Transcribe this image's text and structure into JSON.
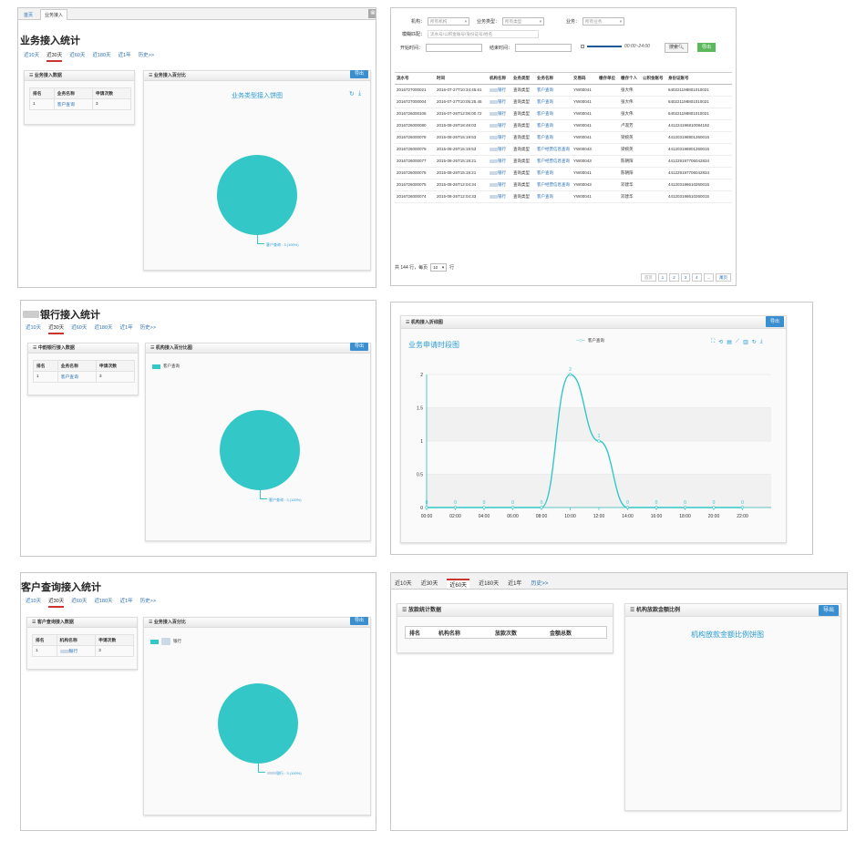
{
  "p1": {
    "nav_tabs": [
      "首页",
      "业务接入"
    ],
    "title": "业务接入统计",
    "range_tabs": [
      "近10天",
      "近30天",
      "近60天",
      "近180天",
      "近1年",
      "历史>>"
    ],
    "active_range": 1,
    "left_card": {
      "title": "业务接入数据",
      "headers": [
        "排名",
        "业务名称",
        "申请次数"
      ],
      "rows": [
        [
          "1",
          "客户查询",
          "3"
        ]
      ]
    },
    "right_card": {
      "title": "业务接入百分比",
      "export": "导出"
    },
    "chart_data": {
      "type": "pie",
      "title": "业务类型接入饼图",
      "series": [
        {
          "name": "客户查询",
          "values": [
            3
          ]
        }
      ],
      "labels": [
        "客户查询 : 3 (100%)"
      ],
      "color": "#33c7c7"
    }
  },
  "p2": {
    "filters": {
      "org_label": "机构：",
      "org_value": "所有机构",
      "type_label": "业务类型：",
      "type_value": "所有类型",
      "biz_label": "业务：",
      "biz_value": "所有业务",
      "fuzzy_label": "模糊匹配：",
      "fuzzy_placeholder": "流水号/公积金账号/身份证号/姓名",
      "start_label": "开始时间：",
      "end_label": "结束时间：",
      "time_range": "00:00~24:00",
      "search": "搜索",
      "export": "导出"
    },
    "headers": [
      "流水号",
      "时间",
      "机构名称",
      "业务类型",
      "业务名称",
      "交易码",
      "缴存单位",
      "缴存个人",
      "公积金账号",
      "身份证账号"
    ],
    "rows": [
      [
        "2016727000021",
        "2016-07-27T10:34:45.61",
        "银行",
        "查询类型",
        "客户查询",
        "YW00041",
        "",
        "张大伟",
        "",
        "640221198801010021"
      ],
      [
        "2016727000004",
        "2016-07-27T10:05:25.45",
        "银行",
        "查询类型",
        "客户查询",
        "YW00041",
        "",
        "张大伟",
        "",
        "640221198801010021"
      ],
      [
        "2016726000105",
        "2016-07-26T12:06:00.72",
        "银行",
        "查询类型",
        "客户查询",
        "YW00041",
        "",
        "张大伟",
        "",
        "640221198801010021"
      ],
      [
        "2016726000080",
        "2015-08-26T18:49:03",
        "银行",
        "查询类型",
        "客户查询",
        "YW00041",
        "",
        "卢淑芳",
        "",
        "441224196810084192"
      ],
      [
        "2016726000078",
        "2015-08-26T15:19:53",
        "银行",
        "查询类型",
        "客户查询",
        "YW00041",
        "",
        "梁婉英",
        "",
        "441203198801260015"
      ],
      [
        "2016726000079",
        "2015-08-26T15:19:53",
        "银行",
        "查询类型",
        "客户经营信息查询",
        "YW00043",
        "",
        "梁婉英",
        "",
        "441203198801260015"
      ],
      [
        "2016726000077",
        "2015-08-26T15:19:21",
        "银行",
        "查询类型",
        "客户经营信息查询",
        "YW00043",
        "",
        "陈朝阳",
        "",
        "441229197706042834"
      ],
      [
        "2016726000076",
        "2015-08-26T15:19:21",
        "银行",
        "查询类型",
        "客户查询",
        "YW00041",
        "",
        "陈朝阳",
        "",
        "441229197706042834"
      ],
      [
        "2016726000075",
        "2015-08-26T12:04:34",
        "银行",
        "查询类型",
        "客户经营信息查询",
        "YW00043",
        "",
        "邓建华",
        "",
        "441203198610260015"
      ],
      [
        "2016726000074",
        "2015-08-26T12:04:33",
        "银行",
        "查询类型",
        "客户查询",
        "YW00041",
        "",
        "邓建华",
        "",
        "441203198610260015"
      ]
    ],
    "footer": {
      "total": "共 144 行，每页",
      "page_size": "10",
      "unit": "行"
    },
    "pagination": [
      "首页",
      "1",
      "2",
      "3",
      "4",
      "...",
      "尾页"
    ]
  },
  "p3": {
    "title": "银行接入统计",
    "range_tabs": [
      "近10天",
      "近30天",
      "近60天",
      "近180天",
      "近1年",
      "历史>>"
    ],
    "active_range": 1,
    "left_card": {
      "title": "中韵银行接入数据",
      "headers": [
        "排名",
        "业务名称",
        "申请次数"
      ],
      "rows": [
        [
          "1",
          "客户查询",
          "3"
        ]
      ]
    },
    "right_card": {
      "title": "机构接入百分比图",
      "export": "导出"
    },
    "chart_data": {
      "type": "pie",
      "series": [
        {
          "name": "客户查询",
          "values": [
            3
          ]
        }
      ],
      "legend": [
        "客户查询"
      ],
      "labels": [
        "客户查询 : 3 (100%)"
      ],
      "color": "#33c7c7"
    }
  },
  "p4": {
    "card_title": "机构接入折线图",
    "export": "导出",
    "chart_data": {
      "type": "line",
      "title": "业务申请时段图",
      "legend": [
        "客户查询"
      ],
      "x": [
        "00:00",
        "02:00",
        "04:00",
        "06:00",
        "08:00",
        "10:00",
        "12:00",
        "14:00",
        "16:00",
        "18:00",
        "20:00",
        "22:00"
      ],
      "series": [
        {
          "name": "客户查询",
          "values": [
            0,
            0,
            0,
            0,
            0,
            2,
            1,
            0,
            0,
            0,
            0,
            0
          ]
        }
      ],
      "yticks": [
        "0",
        "0.5",
        "1",
        "1.5",
        "2"
      ],
      "ylim": [
        0,
        2
      ]
    }
  },
  "p5": {
    "title": "客户查询接入统计",
    "range_tabs": [
      "近10天",
      "近30天",
      "近60天",
      "近180天",
      "近1年",
      "历史>>"
    ],
    "active_range": 1,
    "left_card": {
      "title": "客户查询接入数据",
      "headers": [
        "排名",
        "机构名称",
        "申请次数"
      ],
      "rows": [
        [
          "1",
          "银行",
          "3"
        ]
      ]
    },
    "right_card": {
      "title": "业务接入百分比",
      "export": "导出"
    },
    "chart_data": {
      "type": "pie",
      "series": [
        {
          "name": "银行",
          "values": [
            3
          ]
        }
      ],
      "legend": [
        "银行"
      ],
      "labels": [
        "银行 : 3 (100%)"
      ],
      "color": "#33c7c7"
    }
  },
  "p6": {
    "range_tabs": [
      "近10天",
      "近30天",
      "近60天",
      "近180天",
      "近1年",
      "历史>>"
    ],
    "active_range": 2,
    "left_card": {
      "title": "放款统计数据",
      "headers": [
        "排名",
        "机构名称",
        "放款次数",
        "金额总数"
      ]
    },
    "right_card": {
      "title": "机构放款金额比例",
      "export": "导出"
    },
    "chart_title": "机构放款金额比例饼图"
  }
}
